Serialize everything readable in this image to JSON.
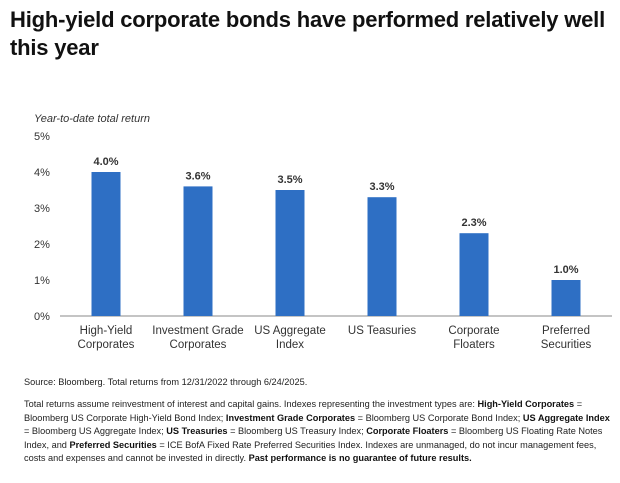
{
  "page": {
    "headline": "High-yield corporate bonds have performed relatively well this year"
  },
  "chart_data": {
    "type": "bar",
    "title": "",
    "ylabel": "Year-to-date total return",
    "xlabel": "",
    "unit": "%",
    "ylim": [
      0,
      5
    ],
    "yticks": [
      0,
      1,
      2,
      3,
      4,
      5
    ],
    "ytick_labels": [
      "0%",
      "1%",
      "2%",
      "3%",
      "4%",
      "5%"
    ],
    "categories": [
      [
        "High-Yield",
        "Corporates"
      ],
      [
        "Investment Grade",
        "Corporates"
      ],
      [
        "US Aggregate",
        "Index"
      ],
      [
        "US Teasuries"
      ],
      [
        "Corporate",
        "Floaters"
      ],
      [
        "Preferred",
        "Securities"
      ]
    ],
    "values": [
      4.0,
      3.6,
      3.5,
      3.3,
      2.3,
      1.0
    ],
    "data_labels": [
      "4.0%",
      "3.6%",
      "3.5%",
      "3.3%",
      "2.3%",
      "1.0%"
    ],
    "grid": false,
    "legend": "none",
    "bar_color": "#2e6fc4",
    "axis_color": "#8a8a8a",
    "text_color": "#333333"
  },
  "footnotes": {
    "source": "Source: Bloomberg. Total returns from 12/31/2022 through 6/24/2025.",
    "notes": [
      {
        "text": "Total returns assume reinvestment of interest and capital gains. Indexes representing the investment types are: ",
        "bold": false
      },
      {
        "text": "High-Yield Corporates",
        "bold": true
      },
      {
        "text": " = Bloomberg US Corporate High-Yield Bond Index; ",
        "bold": false
      },
      {
        "text": "Investment Grade Corporates",
        "bold": true
      },
      {
        "text": " = Bloomberg US Corporate Bond Index; ",
        "bold": false
      },
      {
        "text": "US Aggregate Index",
        "bold": true
      },
      {
        "text": " = Bloomberg US Aggregate Index; ",
        "bold": false
      },
      {
        "text": "US Treasuries",
        "bold": true
      },
      {
        "text": " = Bloomberg US Treasury Index; ",
        "bold": false
      },
      {
        "text": "Corporate Floaters",
        "bold": true
      },
      {
        "text": " = Bloomberg US Floating Rate Notes Index, and ",
        "bold": false
      },
      {
        "text": "Preferred Securities",
        "bold": true
      },
      {
        "text": " = ICE BofA Fixed Rate Preferred Securities Index. Indexes are unmanaged, do not incur management fees, costs and expenses and cannot be invested in directly. ",
        "bold": false
      },
      {
        "text": "Past performance is no guarantee of future results.",
        "bold": true
      }
    ]
  }
}
